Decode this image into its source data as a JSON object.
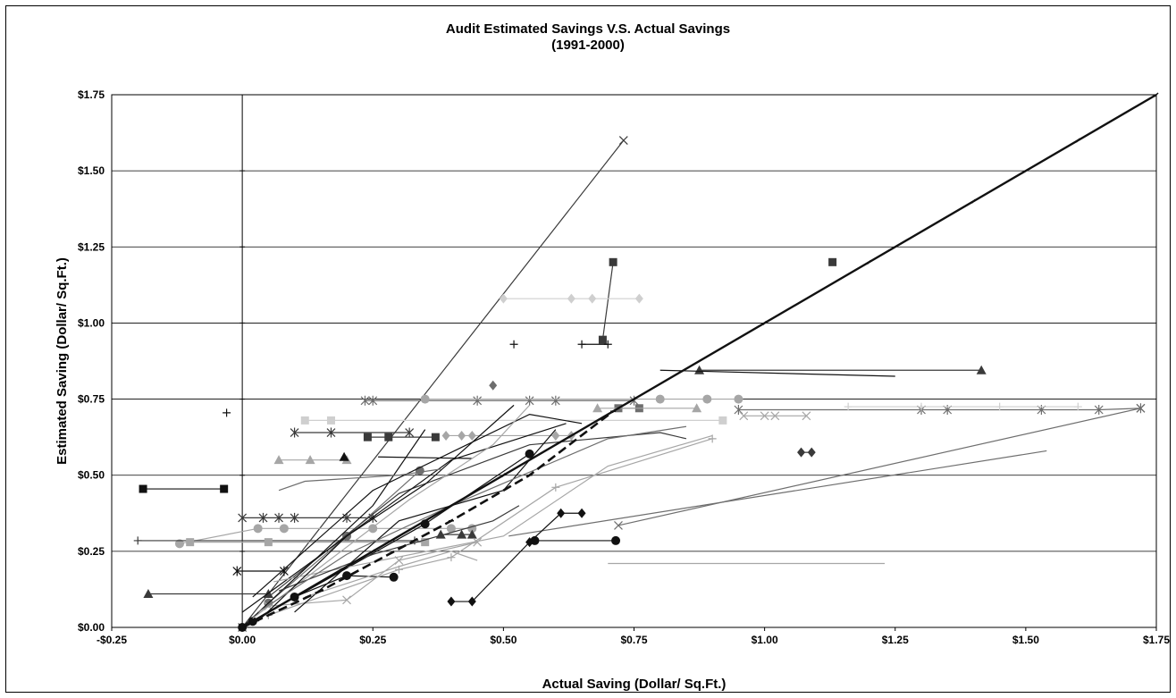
{
  "chart_data": {
    "type": "scatter",
    "title": "Audit Estimated Savings V.S. Actual Savings",
    "subtitle": "(1991-2000)",
    "xlabel": "Actual Saving (Dollar/ Sq.Ft.)",
    "ylabel": "Estimated Saving (Dollar/ Sq.Ft.)",
    "xlim": [
      -0.25,
      1.75
    ],
    "ylim": [
      0.0,
      1.75
    ],
    "x_ticks": [
      -0.25,
      0.0,
      0.25,
      0.5,
      0.75,
      1.0,
      1.25,
      1.5,
      1.75
    ],
    "x_tick_labels": [
      "-$0.25",
      "$0.00",
      "$0.25",
      "$0.50",
      "$0.75",
      "$1.00",
      "$1.25",
      "$1.50",
      "$1.75"
    ],
    "y_ticks": [
      0.0,
      0.25,
      0.5,
      0.75,
      1.0,
      1.25,
      1.5,
      1.75
    ],
    "y_tick_labels": [
      "$0.00",
      "$0.25",
      "$0.50",
      "$0.75",
      "$1.00",
      "$1.25",
      "$1.50",
      "$1.75"
    ],
    "grid": "horizontal",
    "legend": "none",
    "colors": {
      "black": "#111111",
      "dark": "#3a3a3a",
      "mid": "#6e6e6e",
      "light": "#a6a6a6",
      "pale": "#cfcfcf"
    },
    "reference_line": {
      "points": [
        [
          0.0,
          0.0
        ],
        [
          1.75,
          1.75
        ]
      ],
      "marker": "dash",
      "color": "black"
    },
    "series": [
      {
        "marker": "x",
        "color": "dark",
        "points": [
          [
            0.0,
            0.0
          ],
          [
            0.73,
            1.6
          ]
        ]
      },
      {
        "marker": "square",
        "color": "dark",
        "points": [
          [
            0.69,
            0.945
          ],
          [
            0.71,
            1.2
          ]
        ]
      },
      {
        "marker": "square",
        "color": "dark",
        "points": [
          [
            1.13,
            1.2
          ]
        ]
      },
      {
        "marker": "diamond",
        "color": "pale",
        "points": [
          [
            0.5,
            1.08
          ],
          [
            0.63,
            1.08
          ],
          [
            0.67,
            1.08
          ],
          [
            0.76,
            1.08
          ]
        ]
      },
      {
        "marker": "plus",
        "color": "black",
        "points": [
          [
            0.52,
            0.93
          ]
        ]
      },
      {
        "marker": "plus",
        "color": "black",
        "points": [
          [
            0.65,
            0.93
          ],
          [
            0.7,
            0.93
          ]
        ]
      },
      {
        "marker": "plus",
        "color": "black",
        "points": [
          [
            -0.03,
            0.705
          ]
        ]
      },
      {
        "marker": "square",
        "color": "black",
        "points": [
          [
            -0.19,
            0.455
          ],
          [
            -0.035,
            0.455
          ]
        ]
      },
      {
        "marker": "triangle",
        "color": "dark",
        "points": [
          [
            0.875,
            0.845
          ],
          [
            1.415,
            0.845
          ]
        ]
      },
      {
        "marker": "none",
        "color": "black",
        "points": [
          [
            0.8,
            0.845
          ],
          [
            1.25,
            0.825
          ]
        ]
      },
      {
        "marker": "diamond",
        "color": "mid",
        "points": [
          [
            0.48,
            0.795
          ]
        ]
      },
      {
        "marker": "star",
        "color": "mid",
        "points": [
          [
            0.235,
            0.745
          ],
          [
            0.25,
            0.745
          ],
          [
            0.45,
            0.745
          ],
          [
            0.55,
            0.745
          ],
          [
            0.6,
            0.745
          ],
          [
            0.75,
            0.745
          ]
        ]
      },
      {
        "marker": "circle",
        "color": "light",
        "points": [
          [
            0.35,
            0.75
          ],
          [
            0.8,
            0.75
          ],
          [
            0.89,
            0.75
          ],
          [
            0.95,
            0.75
          ]
        ]
      },
      {
        "marker": "star",
        "color": "mid",
        "points": [
          [
            0.95,
            0.715
          ],
          [
            1.3,
            0.715
          ],
          [
            1.35,
            0.715
          ],
          [
            1.53,
            0.715
          ],
          [
            1.64,
            0.715
          ],
          [
            1.72,
            0.72
          ]
        ]
      },
      {
        "marker": "x",
        "color": "light",
        "points": [
          [
            0.96,
            0.695
          ],
          [
            1.0,
            0.695
          ],
          [
            1.02,
            0.695
          ],
          [
            1.08,
            0.695
          ]
        ]
      },
      {
        "marker": "plus",
        "color": "pale",
        "points": [
          [
            1.16,
            0.725
          ],
          [
            1.3,
            0.725
          ],
          [
            1.45,
            0.725
          ],
          [
            1.6,
            0.725
          ]
        ]
      },
      {
        "marker": "square",
        "color": "pale",
        "points": [
          [
            0.12,
            0.68
          ],
          [
            0.17,
            0.68
          ],
          [
            0.92,
            0.68
          ]
        ]
      },
      {
        "marker": "square",
        "color": "dark",
        "points": [
          [
            0.24,
            0.625
          ],
          [
            0.28,
            0.625
          ],
          [
            0.37,
            0.625
          ]
        ]
      },
      {
        "marker": "star",
        "color": "dark",
        "points": [
          [
            0.1,
            0.64
          ],
          [
            0.17,
            0.64
          ],
          [
            0.32,
            0.64
          ]
        ]
      },
      {
        "marker": "triangle",
        "color": "light",
        "points": [
          [
            0.07,
            0.55
          ],
          [
            0.13,
            0.55
          ],
          [
            0.2,
            0.55
          ]
        ]
      },
      {
        "marker": "triangle",
        "color": "black",
        "points": [
          [
            0.195,
            0.56
          ]
        ]
      },
      {
        "marker": "diamond",
        "color": "light",
        "points": [
          [
            0.39,
            0.63
          ],
          [
            0.42,
            0.63
          ],
          [
            0.44,
            0.63
          ],
          [
            0.6,
            0.63
          ],
          [
            0.63,
            0.63
          ]
        ]
      },
      {
        "marker": "none",
        "color": "black",
        "points": [
          [
            0.26,
            0.56
          ],
          [
            0.44,
            0.555
          ]
        ]
      },
      {
        "marker": "square",
        "color": "mid",
        "points": [
          [
            0.72,
            0.72
          ],
          [
            0.76,
            0.72
          ]
        ]
      },
      {
        "marker": "triangle",
        "color": "light",
        "points": [
          [
            0.68,
            0.72
          ],
          [
            0.87,
            0.72
          ]
        ]
      },
      {
        "marker": "diamond",
        "color": "dark",
        "points": [
          [
            1.07,
            0.575
          ],
          [
            1.09,
            0.575
          ]
        ]
      },
      {
        "marker": "none",
        "color": "mid",
        "points": [
          [
            0.51,
            0.3
          ],
          [
            1.54,
            0.58
          ]
        ]
      },
      {
        "marker": "x",
        "color": "mid",
        "points": [
          [
            0.72,
            0.335
          ],
          [
            1.72,
            0.72
          ]
        ]
      },
      {
        "marker": "none",
        "color": "light",
        "points": [
          [
            0.7,
            0.21
          ],
          [
            1.23,
            0.21
          ]
        ]
      },
      {
        "marker": "circle",
        "color": "black",
        "points": [
          [
            0.56,
            0.285
          ],
          [
            0.715,
            0.285
          ]
        ]
      },
      {
        "marker": "diamond",
        "color": "black",
        "points": [
          [
            0.4,
            0.085
          ],
          [
            0.44,
            0.085
          ],
          [
            0.55,
            0.28
          ],
          [
            0.61,
            0.375
          ],
          [
            0.65,
            0.375
          ]
        ]
      },
      {
        "marker": "circle",
        "color": "light",
        "points": [
          [
            -0.12,
            0.275
          ],
          [
            0.03,
            0.325
          ],
          [
            0.08,
            0.325
          ],
          [
            0.25,
            0.325
          ],
          [
            0.4,
            0.325
          ],
          [
            0.44,
            0.325
          ]
        ]
      },
      {
        "marker": "plus",
        "color": "dark",
        "points": [
          [
            -0.2,
            0.285
          ],
          [
            0.33,
            0.285
          ]
        ]
      },
      {
        "marker": "square",
        "color": "light",
        "points": [
          [
            -0.1,
            0.28
          ],
          [
            0.05,
            0.28
          ],
          [
            0.35,
            0.28
          ]
        ]
      },
      {
        "marker": "star",
        "color": "dark",
        "points": [
          [
            0.0,
            0.36
          ],
          [
            0.04,
            0.36
          ],
          [
            0.07,
            0.36
          ],
          [
            0.1,
            0.36
          ],
          [
            0.2,
            0.36
          ],
          [
            0.25,
            0.36
          ]
        ]
      },
      {
        "marker": "triangle",
        "color": "dark",
        "points": [
          [
            -0.18,
            0.11
          ],
          [
            0.05,
            0.11
          ]
        ]
      },
      {
        "marker": "triangle",
        "color": "dark",
        "points": [
          [
            0.38,
            0.305
          ],
          [
            0.42,
            0.305
          ],
          [
            0.44,
            0.305
          ]
        ]
      },
      {
        "marker": "star",
        "color": "black",
        "points": [
          [
            -0.01,
            0.185
          ],
          [
            0.08,
            0.185
          ]
        ]
      },
      {
        "marker": "circle",
        "color": "black",
        "points": [
          [
            0.0,
            0.0
          ],
          [
            0.1,
            0.1
          ],
          [
            0.2,
            0.17
          ],
          [
            0.29,
            0.165
          ]
        ]
      },
      {
        "marker": "circle",
        "color": "black",
        "points": [
          [
            0.02,
            0.02
          ],
          [
            0.35,
            0.34
          ],
          [
            0.55,
            0.57
          ]
        ]
      },
      {
        "marker": "circle",
        "color": "mid",
        "points": [
          [
            0.05,
            0.08
          ],
          [
            0.2,
            0.3
          ],
          [
            0.34,
            0.515
          ]
        ]
      },
      {
        "marker": "x",
        "color": "light",
        "points": [
          [
            0.05,
            0.07
          ],
          [
            0.2,
            0.09
          ],
          [
            0.3,
            0.22
          ],
          [
            0.45,
            0.28
          ]
        ]
      },
      {
        "marker": "plus",
        "color": "light",
        "points": [
          [
            0.05,
            0.04
          ],
          [
            0.3,
            0.19
          ],
          [
            0.4,
            0.23
          ],
          [
            0.6,
            0.46
          ],
          [
            0.9,
            0.62
          ]
        ]
      },
      {
        "marker": "none",
        "color": "dark",
        "points": [
          [
            0.05,
            0.1
          ],
          [
            0.3,
            0.44
          ],
          [
            0.55,
            0.6
          ],
          [
            0.8,
            0.64
          ],
          [
            0.85,
            0.62
          ]
        ]
      },
      {
        "marker": "none",
        "color": "black",
        "points": [
          [
            0.0,
            0.05
          ],
          [
            0.4,
            0.55
          ],
          [
            0.62,
            0.67
          ]
        ]
      },
      {
        "marker": "none",
        "color": "black",
        "points": [
          [
            0.02,
            0.1
          ],
          [
            0.25,
            0.45
          ],
          [
            0.55,
            0.7
          ],
          [
            0.65,
            0.67
          ]
        ]
      },
      {
        "marker": "none",
        "color": "light",
        "points": [
          [
            0.06,
            0.15
          ],
          [
            0.5,
            0.3
          ],
          [
            0.7,
            0.53
          ],
          [
            0.9,
            0.63
          ]
        ]
      },
      {
        "marker": "none",
        "color": "black",
        "points": [
          [
            0.0,
            0.0
          ],
          [
            0.25,
            0.4
          ],
          [
            0.35,
            0.65
          ]
        ]
      },
      {
        "marker": "none",
        "color": "black",
        "points": [
          [
            0.1,
            0.05
          ],
          [
            0.3,
            0.35
          ],
          [
            0.5,
            0.45
          ],
          [
            0.6,
            0.65
          ]
        ]
      },
      {
        "marker": "none",
        "color": "light",
        "points": [
          [
            0.02,
            0.03
          ],
          [
            0.32,
            0.42
          ],
          [
            0.48,
            0.6
          ],
          [
            0.55,
            0.73
          ]
        ]
      },
      {
        "marker": "none",
        "color": "dark",
        "points": [
          [
            0.07,
            0.12
          ],
          [
            0.25,
            0.24
          ],
          [
            0.48,
            0.35
          ],
          [
            0.53,
            0.4
          ]
        ]
      },
      {
        "marker": "none",
        "color": "mid",
        "points": [
          [
            0.07,
            0.45
          ],
          [
            0.12,
            0.48
          ],
          [
            0.3,
            0.5
          ],
          [
            0.38,
            0.52
          ]
        ]
      },
      {
        "marker": "none",
        "color": "black",
        "points": [
          [
            0.03,
            0.02
          ],
          [
            0.2,
            0.3
          ],
          [
            0.35,
            0.47
          ],
          [
            0.52,
            0.73
          ]
        ]
      },
      {
        "marker": "none",
        "color": "light",
        "points": [
          [
            0.12,
            0.1
          ],
          [
            0.3,
            0.2
          ],
          [
            0.4,
            0.25
          ],
          [
            0.45,
            0.22
          ]
        ]
      },
      {
        "marker": "none",
        "color": "mid",
        "points": [
          [
            0.03,
            0.05
          ],
          [
            0.2,
            0.24
          ],
          [
            0.4,
            0.4
          ],
          [
            0.7,
            0.62
          ],
          [
            0.85,
            0.66
          ]
        ]
      },
      {
        "marker": "dash",
        "color": "black",
        "points": [
          [
            0.0,
            0.0
          ],
          [
            0.15,
            0.12
          ],
          [
            0.4,
            0.35
          ],
          [
            0.55,
            0.5
          ],
          [
            0.71,
            0.71
          ]
        ]
      }
    ]
  }
}
